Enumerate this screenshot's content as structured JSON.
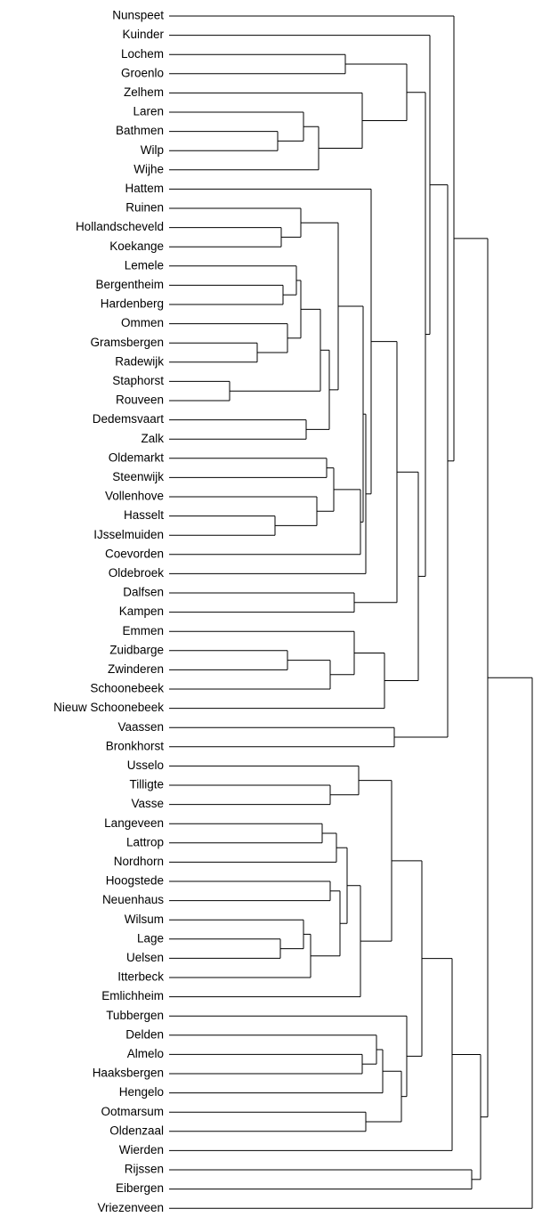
{
  "chart_data": {
    "type": "dendrogram",
    "tree": {
      "height": 408,
      "children": [
        {
          "height": 358,
          "children": [
            {
              "height": 320,
              "children": [
                "Nunspeet",
                {
                  "height": 313,
                  "children": [
                    {
                      "height": 293,
                      "children": [
                        "Kuinder",
                        {
                          "height": 288,
                          "children": [
                            {
                              "height": 267,
                              "children": [
                                {
                                  "height": 198,
                                  "children": [
                                    "Lochem",
                                    "Groenlo"
                                  ]
                                },
                                {
                                  "height": 217,
                                  "children": [
                                    "Zelhem",
                                    {
                                      "height": 168,
                                      "children": [
                                        {
                                          "height": 151,
                                          "children": [
                                            "Laren",
                                            {
                                              "height": 122,
                                              "children": [
                                                "Bathmen",
                                                "Wilp"
                                              ]
                                            }
                                          ]
                                        },
                                        "Wijhe"
                                      ]
                                    }
                                  ]
                                }
                              ]
                            },
                            {
                              "height": 280,
                              "children": [
                                {
                                  "height": 256,
                                  "children": [
                                    {
                                      "height": 227,
                                      "children": [
                                        "Hattem",
                                        {
                                          "height": 221,
                                          "children": [
                                            {
                                              "height": 218,
                                              "children": [
                                                {
                                                  "height": 190,
                                                  "children": [
                                                    {
                                                      "height": 148,
                                                      "children": [
                                                        "Ruinen",
                                                        {
                                                          "height": 126,
                                                          "children": [
                                                            "Hollandscheveld",
                                                            "Koekange"
                                                          ]
                                                        }
                                                      ]
                                                    },
                                                    {
                                                      "height": 180,
                                                      "children": [
                                                        {
                                                          "height": 170,
                                                          "children": [
                                                            {
                                                              "height": 148,
                                                              "children": [
                                                                {
                                                                  "height": 143,
                                                                  "children": [
                                                                    "Lemele",
                                                                    {
                                                                      "height": 128,
                                                                      "children": [
                                                                        "Bergentheim",
                                                                        "Hardenberg"
                                                                      ]
                                                                    }
                                                                  ]
                                                                },
                                                                {
                                                                  "height": 133,
                                                                  "children": [
                                                                    "Ommen",
                                                                    {
                                                                      "height": 99,
                                                                      "children": [
                                                                        "Gramsbergen",
                                                                        "Radewijk"
                                                                      ]
                                                                    }
                                                                  ]
                                                                }
                                                              ]
                                                            },
                                                            {
                                                              "height": 68,
                                                              "children": [
                                                                "Staphorst",
                                                                "Rouveen"
                                                              ]
                                                            }
                                                          ]
                                                        },
                                                        {
                                                          "height": 154,
                                                          "children": [
                                                            "Dedemsvaart",
                                                            "Zalk"
                                                          ]
                                                        }
                                                      ]
                                                    }
                                                  ]
                                                },
                                                {
                                                  "height": 215,
                                                  "children": [
                                                    {
                                                      "height": 185,
                                                      "children": [
                                                        {
                                                          "height": 177,
                                                          "children": [
                                                            "Oldemarkt",
                                                            "Steenwijk"
                                                          ]
                                                        },
                                                        {
                                                          "height": 166,
                                                          "children": [
                                                            "Vollenhove",
                                                            {
                                                              "height": 119,
                                                              "children": [
                                                                "Hasselt",
                                                                "IJsselmuiden"
                                                              ]
                                                            }
                                                          ]
                                                        }
                                                      ]
                                                    },
                                                    "Coevorden"
                                                  ]
                                                }
                                              ]
                                            },
                                            "Oldebroek"
                                          ]
                                        }
                                      ]
                                    },
                                    {
                                      "height": 208,
                                      "children": [
                                        "Dalfsen",
                                        "Kampen"
                                      ]
                                    }
                                  ]
                                },
                                {
                                  "height": 242,
                                  "children": [
                                    {
                                      "height": 208,
                                      "children": [
                                        "Emmen",
                                        {
                                          "height": 181,
                                          "children": [
                                            {
                                              "height": 133,
                                              "children": [
                                                "Zuidbarge",
                                                "Zwinderen"
                                              ]
                                            },
                                            "Schoonebeek"
                                          ]
                                        }
                                      ]
                                    },
                                    "Nieuw Schoonebeek"
                                  ]
                                }
                              ]
                            }
                          ]
                        }
                      ]
                    },
                    {
                      "height": 253,
                      "children": [
                        "Vaassen",
                        "Bronkhorst"
                      ]
                    }
                  ]
                }
              ]
            },
            {
              "height": 350,
              "children": [
                {
                  "height": 318,
                  "children": [
                    {
                      "height": 284,
                      "children": [
                        {
                          "height": 250,
                          "children": [
                            {
                              "height": 213,
                              "children": [
                                "Usselo",
                                {
                                  "height": 181,
                                  "children": [
                                    "Tilligte",
                                    "Vasse"
                                  ]
                                }
                              ]
                            },
                            {
                              "height": 215,
                              "children": [
                                {
                                  "height": 200,
                                  "children": [
                                    {
                                      "height": 188,
                                      "children": [
                                        {
                                          "height": 172,
                                          "children": [
                                            "Langeveen",
                                            "Lattrop"
                                          ]
                                        },
                                        "Nordhorn"
                                      ]
                                    },
                                    {
                                      "height": 192,
                                      "children": [
                                        {
                                          "height": 181,
                                          "children": [
                                            "Hoogstede",
                                            "Neuenhaus"
                                          ]
                                        },
                                        {
                                          "height": 159,
                                          "children": [
                                            {
                                              "height": 151,
                                              "children": [
                                                "Wilsum",
                                                {
                                                  "height": 125,
                                                  "children": [
                                                    "Lage",
                                                    "Uelsen"
                                                  ]
                                                }
                                              ]
                                            },
                                            "Itterbeck"
                                          ]
                                        }
                                      ]
                                    }
                                  ]
                                },
                                "Emlichheim"
                              ]
                            }
                          ]
                        },
                        {
                          "height": 267,
                          "children": [
                            "Tubbergen",
                            {
                              "height": 261,
                              "children": [
                                {
                                  "height": 240,
                                  "children": [
                                    {
                                      "height": 233,
                                      "children": [
                                        "Delden",
                                        {
                                          "height": 217,
                                          "children": [
                                            "Almelo",
                                            "Haaksbergen"
                                          ]
                                        }
                                      ]
                                    },
                                    "Hengelo"
                                  ]
                                },
                                {
                                  "height": 221,
                                  "children": [
                                    "Ootmarsum",
                                    "Oldenzaal"
                                  ]
                                }
                              ]
                            }
                          ]
                        }
                      ]
                    },
                    "Wierden"
                  ]
                },
                {
                  "height": 340,
                  "children": [
                    "Rijssen",
                    "Eibergen"
                  ]
                }
              ]
            }
          ]
        },
        "Vriezenveen"
      ]
    }
  }
}
